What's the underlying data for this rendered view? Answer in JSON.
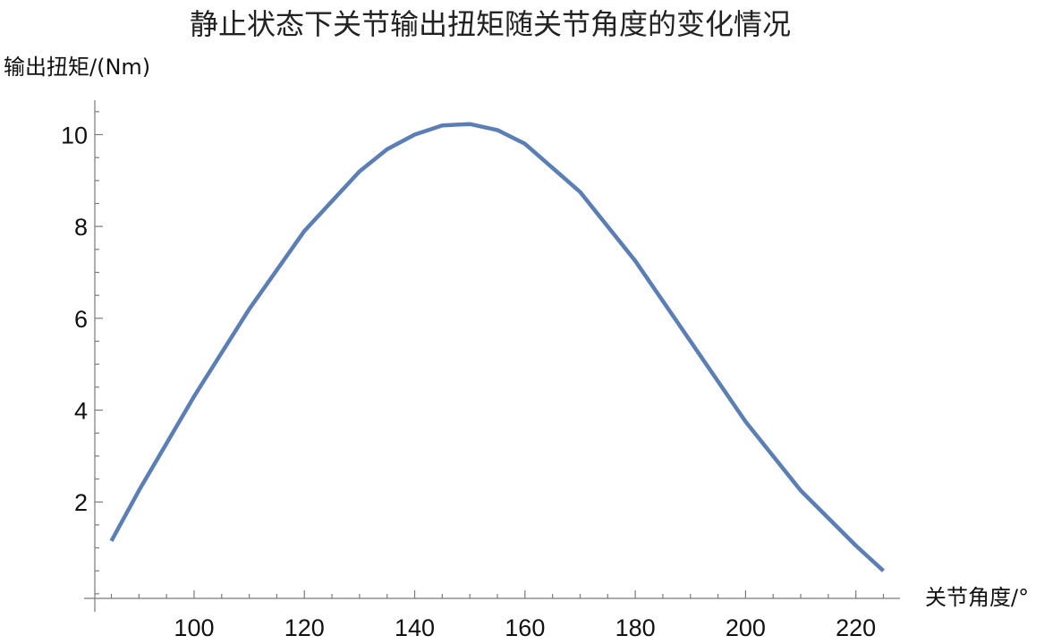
{
  "chart_data": {
    "type": "line",
    "title": "静止状态下关节输出扭矩随关节角度的变化情况",
    "xlabel": "关节角度/°",
    "ylabel": "输出扭矩/(Nm)",
    "xlim": [
      82,
      228
    ],
    "ylim": [
      -0.1,
      10.75
    ],
    "x_ticks": [
      100,
      120,
      140,
      160,
      180,
      200,
      220
    ],
    "y_ticks": [
      2,
      4,
      6,
      8,
      10
    ],
    "x_minor_step": 5,
    "y_minor_step": 0.5,
    "grid": false,
    "legend": "none",
    "series": [
      {
        "color": "#5b7fb4",
        "x": [
          85,
          90,
          100,
          110,
          120,
          130,
          135,
          140,
          145,
          150,
          155,
          160,
          170,
          180,
          190,
          200,
          210,
          220,
          225
        ],
        "y": [
          1.15,
          2.25,
          4.3,
          6.2,
          7.9,
          9.2,
          9.68,
          10.0,
          10.2,
          10.23,
          10.1,
          9.8,
          8.75,
          7.25,
          5.5,
          3.75,
          2.25,
          1.05,
          0.5
        ]
      }
    ]
  }
}
